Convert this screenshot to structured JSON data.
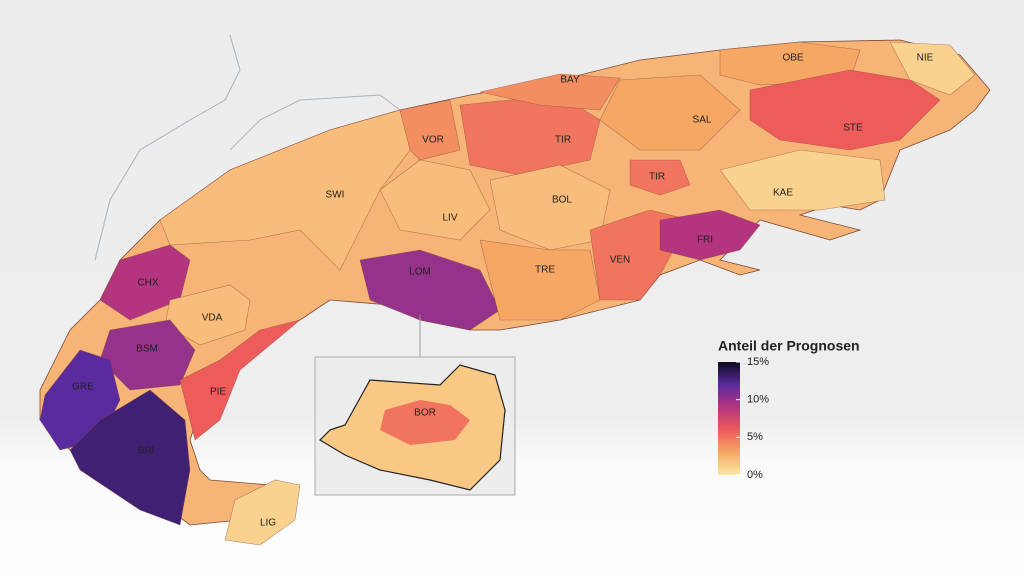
{
  "map": {
    "type": "choropleth",
    "regions": [
      {
        "label": "VOR",
        "value": 4
      },
      {
        "label": "TIR",
        "value": 5
      },
      {
        "label": "BAY",
        "value": 4
      },
      {
        "label": "SAL",
        "value": 3
      },
      {
        "label": "OBE",
        "value": 3
      },
      {
        "label": "NIE",
        "value": 1
      },
      {
        "label": "STE",
        "value": 6
      },
      {
        "label": "KAE",
        "value": 1
      },
      {
        "label": "TIR",
        "value": 5
      },
      {
        "label": "BOL",
        "value": 2
      },
      {
        "label": "SWI",
        "value": 2
      },
      {
        "label": "LIV",
        "value": 2
      },
      {
        "label": "LOM",
        "value": 10
      },
      {
        "label": "TRE",
        "value": 3
      },
      {
        "label": "VEN",
        "value": 5
      },
      {
        "label": "FRI",
        "value": 9
      },
      {
        "label": "CHX",
        "value": 9
      },
      {
        "label": "VDA",
        "value": 2
      },
      {
        "label": "BSM",
        "value": 10
      },
      {
        "label": "GRE",
        "value": 12
      },
      {
        "label": "PIE",
        "value": 6
      },
      {
        "label": "BRI",
        "value": 13
      },
      {
        "label": "LIG",
        "value": 1
      }
    ],
    "inset": {
      "label": "BOR",
      "value": 5
    },
    "legend": {
      "title": "Anteil der Prognosen",
      "lim": [
        0,
        15
      ],
      "ticks": [
        {
          "value": 15,
          "label": "15%"
        },
        {
          "value": 10,
          "label": "10%"
        },
        {
          "value": 5,
          "label": "5%"
        },
        {
          "value": 0,
          "label": "0%"
        }
      ],
      "colors": [
        "#fbe8a6",
        "#f6a764",
        "#ee5b5b",
        "#b3357f",
        "#5a2b9e",
        "#0c0a1e"
      ]
    }
  }
}
